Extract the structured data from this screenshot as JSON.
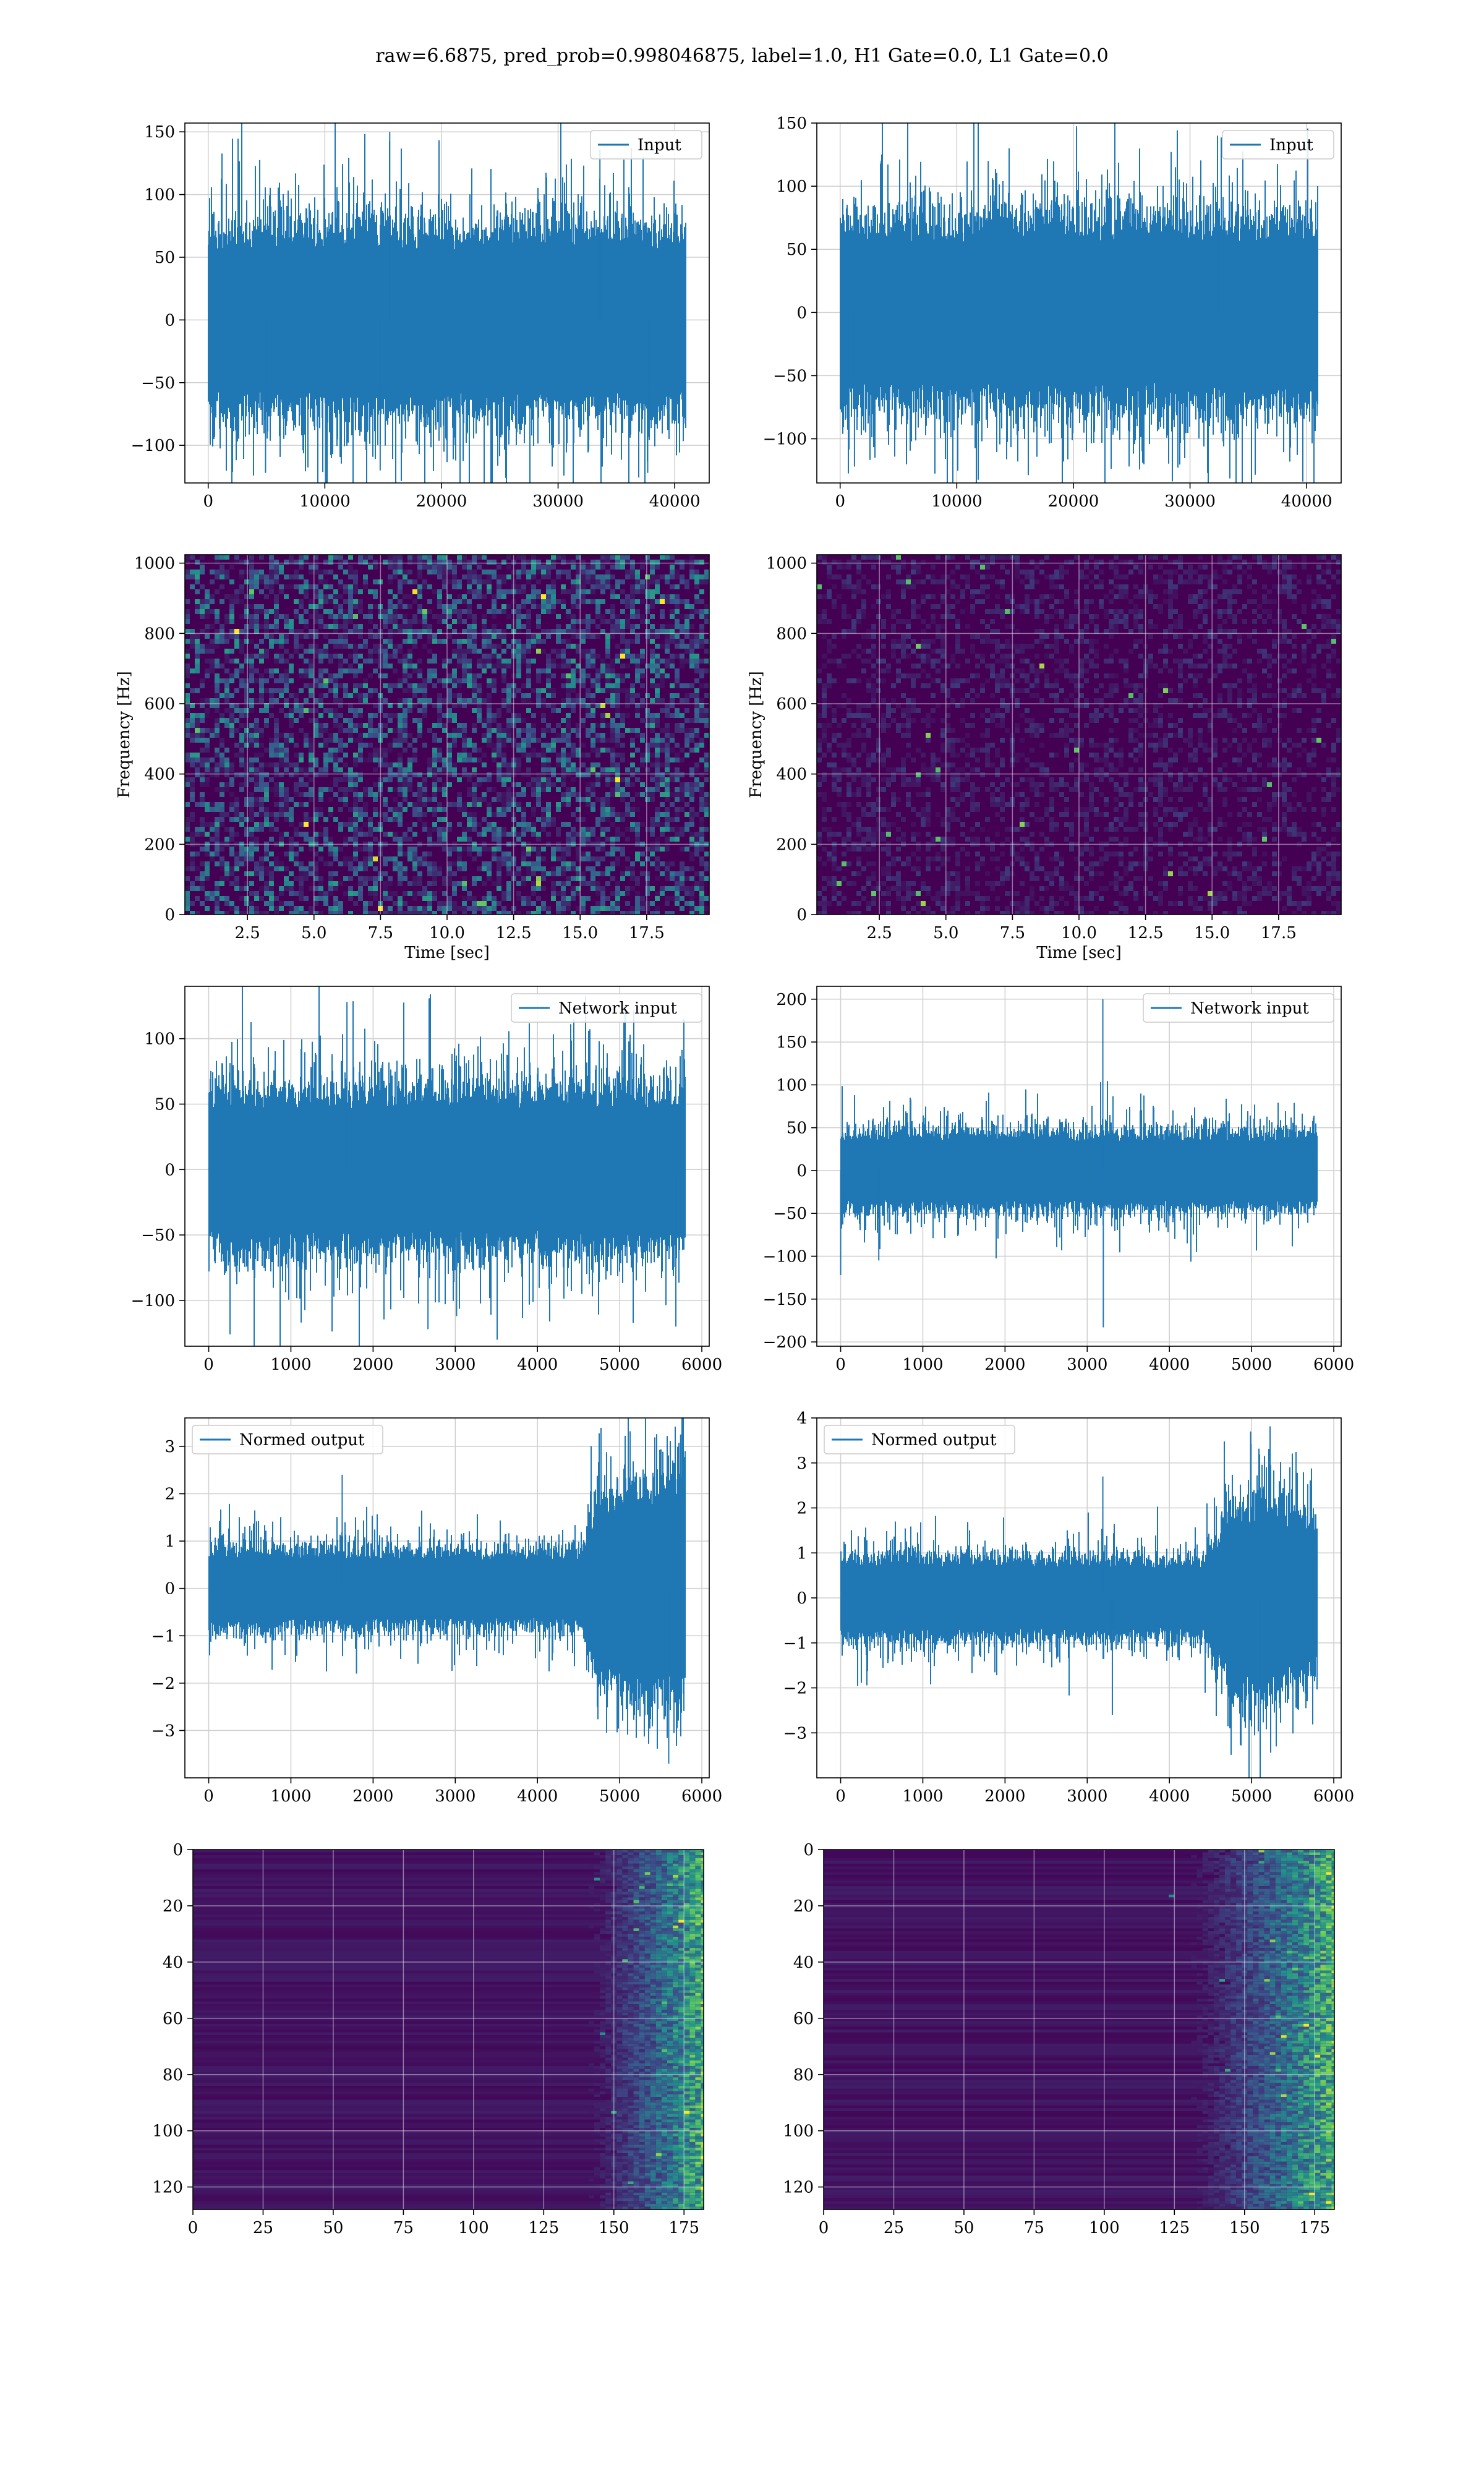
{
  "title": "raw=6.6875, pred_prob=0.998046875, label=1.0, H1 Gate=0.0, L1 Gate=0.0",
  "colors": {
    "line": "#1f77b4",
    "grid": "#cfcfcf",
    "axes": "#000000",
    "viridis_low": "#440154",
    "viridis_mid": "#21918c",
    "viridis_high": "#fde725"
  },
  "chart_data": [
    {
      "id": "row1-left",
      "type": "line",
      "xlabel": "",
      "ylabel": "",
      "legend": "Input",
      "legend_loc": "upper right",
      "xlim": [
        -2000,
        42960
      ],
      "ylim": [
        -130,
        157
      ],
      "xticks": [
        0,
        10000,
        20000,
        30000,
        40000
      ],
      "yticks": [
        -100,
        -50,
        0,
        50,
        100,
        150
      ],
      "n_points": 40960,
      "amp_env": [
        [
          0,
          1.0
        ],
        [
          1,
          1.0
        ]
      ],
      "base_std": 36,
      "spikes": [
        [
          0.38,
          150
        ],
        [
          0.36,
          -120
        ],
        [
          0.82,
          136
        ],
        [
          0.12,
          -122
        ],
        [
          0.92,
          -122
        ]
      ],
      "grid": true
    },
    {
      "id": "row1-right",
      "type": "line",
      "xlabel": "",
      "ylabel": "",
      "legend": "Input",
      "legend_loc": "upper right",
      "xlim": [
        -2000,
        42960
      ],
      "ylim": [
        -135,
        150
      ],
      "xticks": [
        0,
        10000,
        20000,
        30000,
        40000
      ],
      "yticks": [
        -100,
        -50,
        0,
        50,
        100,
        150
      ],
      "n_points": 40960,
      "amp_env": [
        [
          0,
          1.0
        ],
        [
          1,
          1.0
        ]
      ],
      "base_std": 36,
      "spikes": [
        [
          0.03,
          -122
        ],
        [
          0.79,
          140
        ],
        [
          0.31,
          120
        ]
      ],
      "grid": true
    },
    {
      "id": "row2-left",
      "type": "heatmap",
      "xlabel": "Time [sec]",
      "ylabel": "Frequency [Hz]",
      "xlim": [
        0.15,
        19.85
      ],
      "ylim": [
        0,
        1024
      ],
      "xticks": [
        2.5,
        5.0,
        7.5,
        10.0,
        12.5,
        15.0,
        17.5
      ],
      "xticklabels": [
        "2.5",
        "5.0",
        "7.5",
        "10.0",
        "12.5",
        "15.0",
        "17.5"
      ],
      "yticks": [
        0,
        200,
        400,
        600,
        800,
        1000
      ],
      "noise_level": 0.25,
      "grid": true
    },
    {
      "id": "row2-right",
      "type": "heatmap",
      "xlabel": "Time [sec]",
      "ylabel": "Frequency [Hz]",
      "xlim": [
        0.15,
        19.85
      ],
      "ylim": [
        0,
        1024
      ],
      "xticks": [
        2.5,
        5.0,
        7.5,
        10.0,
        12.5,
        15.0,
        17.5
      ],
      "xticklabels": [
        "2.5",
        "5.0",
        "7.5",
        "10.0",
        "12.5",
        "15.0",
        "17.5"
      ],
      "yticks": [
        0,
        200,
        400,
        600,
        800,
        1000
      ],
      "noise_level": 0.08,
      "grid": true
    },
    {
      "id": "row3-left",
      "type": "line",
      "xlabel": "",
      "ylabel": "",
      "legend": "Network input",
      "legend_loc": "upper right",
      "xlim": [
        -290,
        6090
      ],
      "ylim": [
        -135,
        140
      ],
      "xticks": [
        0,
        1000,
        2000,
        3000,
        4000,
        5000,
        6000
      ],
      "yticks": [
        -100,
        -50,
        0,
        50,
        100
      ],
      "n_points": 5800,
      "amp_env": [
        [
          0,
          1.0
        ],
        [
          1,
          1.0
        ]
      ],
      "base_std": 30,
      "spikes": [
        [
          0.29,
          128
        ],
        [
          0.46,
          -122
        ],
        [
          0.52,
          -112
        ],
        [
          0.98,
          -120
        ]
      ],
      "grid": true
    },
    {
      "id": "row3-right",
      "type": "line",
      "xlabel": "",
      "ylabel": "",
      "legend": "Network input",
      "legend_loc": "upper right",
      "xlim": [
        -290,
        6090
      ],
      "ylim": [
        -205,
        215
      ],
      "xticks": [
        0,
        1000,
        2000,
        3000,
        4000,
        5000,
        6000
      ],
      "yticks": [
        -200,
        -150,
        -100,
        -50,
        0,
        50,
        100,
        150,
        200
      ],
      "n_points": 5800,
      "amp_env": [
        [
          0,
          1.0
        ],
        [
          1,
          1.0
        ]
      ],
      "base_std": 22,
      "spikes": [
        [
          0.55,
          200
        ],
        [
          0.551,
          -183
        ],
        [
          0.0,
          -122
        ],
        [
          0.08,
          -105
        ]
      ],
      "grid": true
    },
    {
      "id": "row4-left",
      "type": "line",
      "xlabel": "",
      "ylabel": "",
      "legend": "Normed output",
      "legend_loc": "upper left",
      "xlim": [
        -290,
        6090
      ],
      "ylim": [
        -4.0,
        3.6
      ],
      "xticks": [
        0,
        1000,
        2000,
        3000,
        4000,
        5000,
        6000
      ],
      "yticks": [
        -3,
        -2,
        -1,
        0,
        1,
        2,
        3
      ],
      "n_points": 5800,
      "amp_env": [
        [
          0,
          0.42
        ],
        [
          0.78,
          0.38
        ],
        [
          0.82,
          1.0
        ],
        [
          1,
          1.15
        ]
      ],
      "base_std": 1,
      "spikes": [
        [
          0.28,
          2.4
        ],
        [
          0.965,
          -3.7
        ],
        [
          0.99,
          3.25
        ],
        [
          0.31,
          -1.8
        ]
      ],
      "grid": true
    },
    {
      "id": "row4-right",
      "type": "line",
      "xlabel": "",
      "ylabel": "",
      "legend": "Normed output",
      "legend_loc": "upper left",
      "xlim": [
        -290,
        6090
      ],
      "ylim": [
        -4.0,
        4.0
      ],
      "xticks": [
        0,
        1000,
        2000,
        3000,
        4000,
        5000,
        6000
      ],
      "yticks": [
        -3,
        -2,
        -1,
        0,
        1,
        2,
        3,
        4
      ],
      "n_points": 5800,
      "amp_env": [
        [
          0,
          0.45
        ],
        [
          0.76,
          0.42
        ],
        [
          0.82,
          1.0
        ],
        [
          0.9,
          1.05
        ],
        [
          1,
          0.8
        ]
      ],
      "base_std": 1,
      "spikes": [
        [
          0.55,
          2.7
        ],
        [
          0.57,
          -2.6
        ],
        [
          0.88,
          -3.5
        ],
        [
          0.86,
          3.7
        ]
      ],
      "grid": true
    },
    {
      "id": "row5-left",
      "type": "heatmap",
      "xlabel": "",
      "ylabel": "",
      "xlim": [
        0,
        182
      ],
      "ylim": [
        128,
        0
      ],
      "xticks": [
        0,
        25,
        50,
        75,
        100,
        125,
        150,
        175
      ],
      "xticklabels": [
        "0",
        "25",
        "50",
        "75",
        "100",
        "125",
        "150",
        "175"
      ],
      "yticks": [
        0,
        20,
        40,
        60,
        80,
        100,
        120
      ],
      "ramp_start": 0.68,
      "grid": true
    },
    {
      "id": "row5-right",
      "type": "heatmap",
      "xlabel": "",
      "ylabel": "",
      "xlim": [
        0,
        182
      ],
      "ylim": [
        128,
        0
      ],
      "xticks": [
        0,
        25,
        50,
        75,
        100,
        125,
        150,
        175
      ],
      "xticklabels": [
        "0",
        "25",
        "50",
        "75",
        "100",
        "125",
        "150",
        "175"
      ],
      "yticks": [
        0,
        20,
        40,
        60,
        80,
        100,
        120
      ],
      "ramp_start": 0.6,
      "grid": true
    }
  ]
}
